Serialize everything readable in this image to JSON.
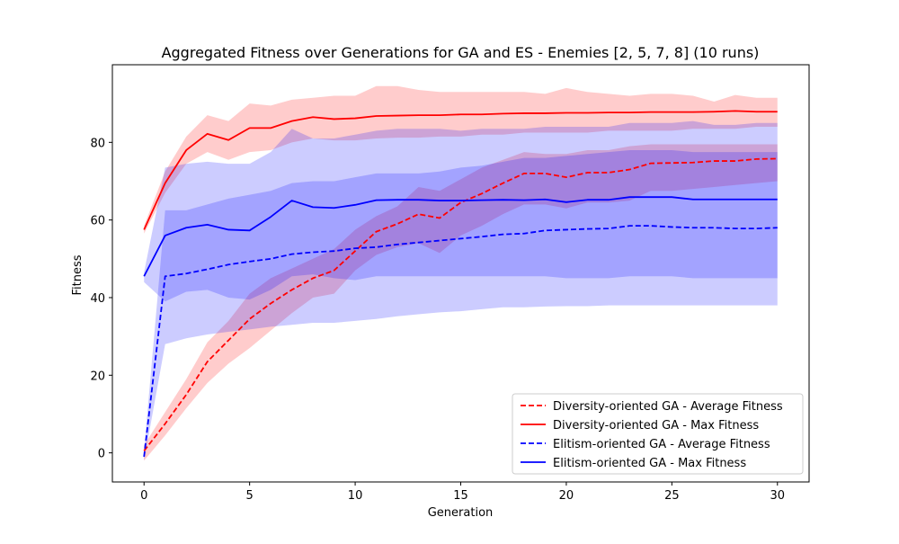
{
  "chart_data": {
    "type": "line",
    "title": "Aggregated Fitness over Generations for GA and ES - Enemies [2, 5, 7, 8] (10 runs)",
    "xlabel": "Generation",
    "ylabel": "Fitness",
    "xlim": [
      -1.5,
      31.5
    ],
    "ylim": [
      -7.5,
      100
    ],
    "xticks": [
      0,
      5,
      10,
      15,
      20,
      25,
      30
    ],
    "yticks": [
      0,
      20,
      40,
      60,
      80
    ],
    "grid": false,
    "legend_location": "lower-right",
    "x": [
      0,
      1,
      2,
      3,
      4,
      5,
      6,
      7,
      8,
      9,
      10,
      11,
      12,
      13,
      14,
      15,
      16,
      17,
      18,
      19,
      20,
      21,
      22,
      23,
      24,
      25,
      26,
      27,
      28,
      29,
      30
    ],
    "series": [
      {
        "name": "Diversity-oriented GA - Average Fitness",
        "color": "#ff0000",
        "linestyle": "dashed",
        "values": [
          0.5,
          7.5,
          15,
          23.5,
          29,
          34.5,
          38.5,
          42,
          45,
          47,
          52,
          57,
          59,
          61.5,
          60.5,
          64.5,
          66.8,
          69.5,
          72,
          72,
          71,
          72.2,
          72.2,
          73,
          74.6,
          74.7,
          74.8,
          75.2,
          75.2,
          75.7,
          75.8
        ],
        "band_lower": [
          -2,
          4.5,
          11.5,
          18,
          23,
          27,
          31.5,
          36,
          40,
          41,
          47,
          51,
          53,
          54,
          51.5,
          56,
          58.5,
          61.5,
          64,
          64,
          63,
          64.5,
          64.5,
          65,
          67.5,
          67.5,
          68,
          68.5,
          69,
          69.5,
          70
        ],
        "band_upper": [
          2,
          10.5,
          19,
          28.5,
          34,
          41,
          45,
          47.5,
          50,
          52.5,
          57.5,
          61,
          63.5,
          68.5,
          67.5,
          70.5,
          73.5,
          75.5,
          77.5,
          77,
          77,
          78,
          78,
          79,
          79.5,
          79.5,
          79.5,
          79.5,
          79.5,
          79.5,
          79.5
        ]
      },
      {
        "name": "Diversity-oriented GA - Max Fitness",
        "color": "#ff0000",
        "linestyle": "solid",
        "values": [
          57.5,
          69.5,
          78,
          82.2,
          80.6,
          83.7,
          83.7,
          85.5,
          86.5,
          86,
          86.2,
          86.8,
          86.9,
          87,
          87,
          87.2,
          87.2,
          87.4,
          87.5,
          87.5,
          87.6,
          87.6,
          87.7,
          87.7,
          87.8,
          87.8,
          87.8,
          87.9,
          88.1,
          87.9,
          87.9
        ],
        "band_lower": [
          56.5,
          67,
          74.5,
          77.5,
          75.5,
          77.5,
          78,
          80,
          81,
          80.5,
          80.5,
          81,
          81.2,
          81.2,
          81.5,
          81.5,
          82,
          82,
          82.5,
          82.5,
          82.5,
          82.5,
          83,
          83,
          83,
          83,
          83.5,
          83.5,
          83.5,
          84,
          84
        ],
        "band_upper": [
          58.5,
          72.5,
          81.5,
          87,
          85.5,
          90,
          89.5,
          91,
          91.5,
          92,
          92,
          94.5,
          94.5,
          93.5,
          93,
          93,
          93,
          93,
          93,
          92.5,
          94,
          93,
          92.5,
          92,
          92.5,
          92.5,
          92,
          90.5,
          92.2,
          91.5,
          91.5
        ]
      },
      {
        "name": "Elitism-oriented GA - Average Fitness",
        "color": "#0000ff",
        "linestyle": "dashed",
        "values": [
          -1,
          45.5,
          46.2,
          47.3,
          48.5,
          49.3,
          50,
          51.2,
          51.7,
          52,
          52.7,
          53,
          53.7,
          54.2,
          54.7,
          55.2,
          55.7,
          56.3,
          56.5,
          57.3,
          57.5,
          57.7,
          57.8,
          58.5,
          58.5,
          58.2,
          58,
          58,
          57.8,
          57.8,
          58
        ],
        "band_lower": [
          -2,
          28,
          29.5,
          30.5,
          31.2,
          31.8,
          32.5,
          33,
          33.5,
          33.5,
          34,
          34.5,
          35.2,
          35.7,
          36.2,
          36.5,
          37,
          37.5,
          37.5,
          37.7,
          37.8,
          37.8,
          38,
          38,
          38,
          38,
          38,
          38,
          38,
          38,
          38
        ],
        "band_upper": [
          0.5,
          62.5,
          62.5,
          64,
          65.5,
          66.5,
          67.5,
          69.5,
          70,
          70,
          71,
          72,
          72,
          72,
          72.5,
          73.5,
          74,
          75,
          76,
          76,
          76.5,
          77,
          77.5,
          78,
          78,
          78,
          77.5,
          77.5,
          77.5,
          77.5,
          77.5
        ]
      },
      {
        "name": "Elitism-oriented GA - Max Fitness",
        "color": "#0000ff",
        "linestyle": "solid",
        "values": [
          45.5,
          56,
          58,
          58.8,
          57.5,
          57.3,
          60.8,
          65,
          63.3,
          63.1,
          63.9,
          65.1,
          65.2,
          65.2,
          65,
          65,
          65.1,
          65.2,
          65.1,
          65.3,
          64.6,
          65.2,
          65.2,
          65.9,
          65.9,
          65.9,
          65.3,
          65.3,
          65.3,
          65.3,
          65.3
        ],
        "band_lower": [
          44,
          39,
          41.5,
          42,
          40,
          39.5,
          42,
          45.5,
          46,
          45,
          44.5,
          45.5,
          45.5,
          45.5,
          45.5,
          45.5,
          45.5,
          45.5,
          45.5,
          45.5,
          45,
          45,
          45,
          45.5,
          45.5,
          45.5,
          45,
          45,
          45,
          45,
          45
        ],
        "band_upper": [
          46.5,
          73.5,
          74.5,
          75,
          74.5,
          74.5,
          77.5,
          83.5,
          81,
          81,
          82,
          83,
          83.5,
          83.5,
          83.5,
          83,
          83.5,
          83.5,
          83.5,
          84,
          84,
          84,
          84,
          85,
          85,
          85,
          85.5,
          84.5,
          84.5,
          85,
          85
        ]
      }
    ]
  }
}
